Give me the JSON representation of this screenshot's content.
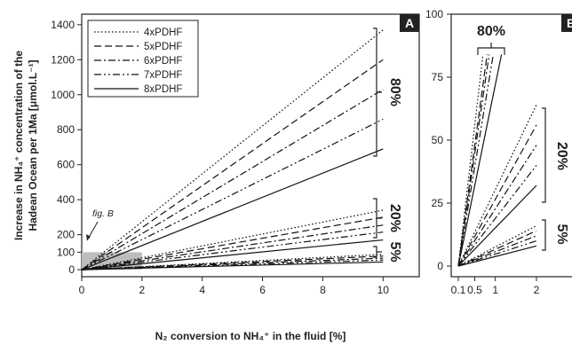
{
  "chart_data": [
    {
      "panel": "A",
      "type": "line",
      "xlabel": "N₂ conversion to NH₄⁺ in the fluid [%]",
      "ylabel_line1": "Increase in NH₄⁺ concentration of the",
      "ylabel_line2": "Hadean Ocean per 1Ma [μmol.L⁻¹]",
      "xlim": [
        0,
        11.2
      ],
      "ylim": [
        -40,
        1460
      ],
      "xticks": [
        "0",
        "2",
        "4",
        "6",
        "8",
        "10"
      ],
      "yticks": [
        "0",
        "100",
        "200",
        "400",
        "600",
        "800",
        "1000",
        "1200",
        "1400"
      ],
      "annotation": "fig. B",
      "legend_position": "top-left",
      "series": [
        {
          "name": "4xPDHF",
          "dash": "dotted",
          "x": [
            0,
            10
          ],
          "y_80": [
            0,
            1370
          ],
          "y_20": [
            0,
            340
          ],
          "y_5": [
            0,
            88
          ]
        },
        {
          "name": "5xPDHF",
          "dash": "dashed",
          "x": [
            0,
            10
          ],
          "y_80": [
            0,
            1200
          ],
          "y_20": [
            0,
            300
          ],
          "y_5": [
            0,
            78
          ]
        },
        {
          "name": "6xPDHF",
          "dash": "dashdot",
          "x": [
            0,
            10
          ],
          "y_80": [
            0,
            1030
          ],
          "y_20": [
            0,
            255
          ],
          "y_5": [
            0,
            66
          ]
        },
        {
          "name": "7xPDHF",
          "dash": "dashdotdot",
          "x": [
            0,
            10
          ],
          "y_80": [
            0,
            860
          ],
          "y_20": [
            0,
            215
          ],
          "y_5": [
            0,
            55
          ]
        },
        {
          "name": "8xPDHF",
          "dash": "solid",
          "x": [
            0,
            10
          ],
          "y_80": [
            0,
            690
          ],
          "y_20": [
            0,
            170
          ],
          "y_5": [
            0,
            44
          ]
        }
      ],
      "group_labels": [
        "80%",
        "20%",
        "5%"
      ],
      "highlight_box": {
        "x": [
          0,
          2
        ],
        "y": [
          0,
          100
        ]
      }
    },
    {
      "panel": "B",
      "type": "line",
      "xticks": [
        "0.1",
        "0.5",
        "1",
        "2"
      ],
      "yticks": [
        "0",
        "25",
        "50",
        "75",
        "100"
      ],
      "ylim": [
        0,
        100
      ],
      "group_labels": [
        "80%",
        "20%",
        "5%"
      ],
      "endpoints": {
        "80": {
          "x": [
            0.7,
            0.8,
            0.85,
            0.95,
            1.15
          ],
          "y": [
            84,
            84,
            84,
            84,
            84
          ]
        },
        "20": {
          "x": [
            2,
            2,
            2,
            2,
            2
          ],
          "y": [
            64,
            56,
            48,
            40,
            32
          ]
        },
        "5": {
          "x": [
            2,
            2,
            2,
            2,
            2
          ],
          "y": [
            16,
            14,
            12,
            10,
            8
          ]
        }
      }
    }
  ],
  "colors": {
    "axis": "#222222",
    "highlight": "#bdbdbd",
    "series": "#111111"
  }
}
